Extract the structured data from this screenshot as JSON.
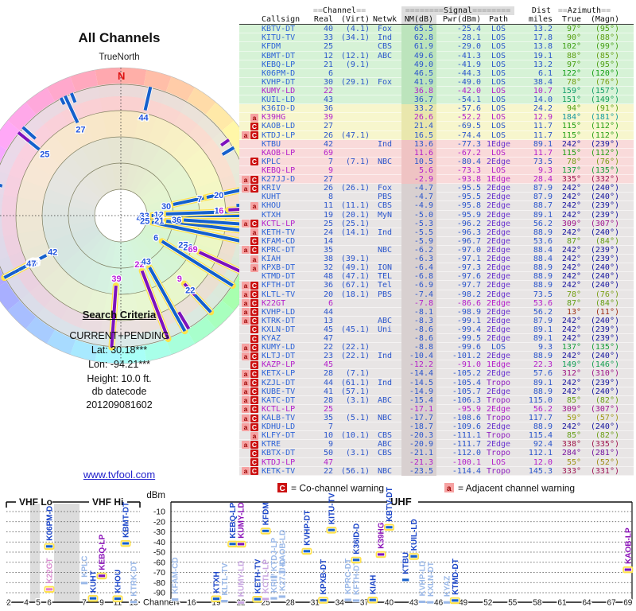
{
  "radar": {
    "title": "All Channels",
    "north_label": "TrueNorth",
    "north_letter": "N"
  },
  "criteria": {
    "heading": "Search Criteria",
    "lines": [
      "CURRENT+PENDING",
      "Lat: 30.18***",
      "Lon: -94.21***",
      "Height: 10.0 ft."
    ],
    "datecode_label": "db datecode",
    "datecode": "201209081602"
  },
  "link_text": "www.tvfool.com",
  "table": {
    "header1": {
      "channel": "==Channel==",
      "signal": "========Signal========",
      "dist": "Dist",
      "azimuth": "==Azimuth=="
    },
    "header2": [
      "Callsign",
      "Real",
      "(Virt)",
      "Netwk",
      "NM(dB)",
      "Pwr(dBm)",
      "Path",
      "miles",
      "True",
      "(Magn)"
    ],
    "rows": [
      [
        "KBTV-DT",
        40,
        "(4.1)",
        "Fox",
        65.5,
        -25.4,
        "LOS",
        13.2,
        97,
        95,
        "",
        "g",
        "",
        1
      ],
      [
        "KITU-TV",
        33,
        "(34.1)",
        "Ind",
        62.8,
        -28.1,
        "LOS",
        17.8,
        90,
        88,
        "",
        "g",
        "",
        1
      ],
      [
        "KFDM",
        25,
        "",
        "CBS",
        61.9,
        -29.0,
        "LOS",
        13.8,
        102,
        99,
        "",
        "g",
        "",
        1
      ],
      [
        "KBMT-DT",
        12,
        "(12.1)",
        "ABC",
        49.6,
        -41.3,
        "LOS",
        19.1,
        88,
        85,
        "",
        "g",
        "",
        1
      ],
      [
        "KEBQ-LP",
        21,
        "(9.1)",
        "",
        49.0,
        -41.9,
        "LOS",
        13.2,
        97,
        95,
        "",
        "g",
        "",
        1
      ],
      [
        "K06PM-D",
        6,
        "",
        "",
        46.5,
        -44.3,
        "LOS",
        6.1,
        122,
        120,
        "",
        "g",
        "",
        1
      ],
      [
        "KVHP-DT",
        30,
        "(29.1)",
        "Fox",
        41.9,
        -49.0,
        "LOS",
        38.4,
        78,
        76,
        "",
        "g",
        "",
        1
      ],
      [
        "KUMY-LD",
        22,
        "",
        "",
        36.8,
        -42.0,
        "LOS",
        10.7,
        159,
        157,
        "",
        "g",
        "all",
        1
      ],
      [
        "KUIL-LD",
        43,
        "",
        "",
        36.7,
        -54.1,
        "LOS",
        14.0,
        151,
        149,
        "",
        "g",
        "",
        1
      ],
      [
        "K36ID-D",
        36,
        "",
        "",
        33.2,
        -57.6,
        "LOS",
        24.2,
        94,
        91,
        "",
        "y",
        "",
        1
      ],
      [
        "K39HG",
        39,
        "",
        "",
        26.6,
        -52.2,
        "LOS",
        12.9,
        184,
        181,
        "a",
        "y",
        "all",
        1
      ],
      [
        "KAOB-LD",
        27,
        "",
        "",
        21.4,
        -69.5,
        "LOS",
        11.7,
        115,
        112,
        "C",
        "y",
        "",
        0
      ],
      [
        "KTDJ-LP",
        26,
        "(47.1)",
        "",
        16.5,
        -74.4,
        "LOS",
        11.7,
        115,
        112,
        "aC",
        "y",
        "",
        0
      ],
      [
        "KTBU",
        42,
        "",
        "Ind",
        13.6,
        -77.3,
        "1Edge",
        89.1,
        242,
        239,
        "",
        "p",
        "",
        0
      ],
      [
        "KAOB-LP",
        69,
        "",
        "",
        11.6,
        -67.2,
        "LOS",
        11.7,
        115,
        112,
        "",
        "p",
        "all",
        1
      ],
      [
        "KPLC",
        7,
        "(7.1)",
        "NBC",
        10.5,
        -80.4,
        "2Edge",
        73.5,
        78,
        76,
        "C",
        "p",
        "",
        1
      ],
      [
        "KEBQ-LP",
        9,
        "",
        "",
        5.6,
        -73.3,
        "LOS",
        9.3,
        137,
        135,
        "",
        "p",
        "all",
        1
      ],
      [
        "K27JJ-D",
        27,
        "",
        "",
        -2.9,
        -93.8,
        "1Edge",
        28.4,
        335,
        332,
        "aC",
        "p",
        "vals",
        0
      ],
      [
        "KRIV",
        26,
        "(26.1)",
        "Fox",
        -4.7,
        -95.5,
        "2Edge",
        87.9,
        242,
        240,
        "aC",
        "x",
        "",
        0
      ],
      [
        "KUHT",
        8,
        "",
        "PBS",
        -4.7,
        -95.5,
        "2Edge",
        87.9,
        242,
        240,
        "",
        "x",
        "",
        1
      ],
      [
        "KHOU",
        11,
        "(11.1)",
        "CBS",
        -4.9,
        -95.8,
        "2Edge",
        88.7,
        242,
        239,
        "a",
        "x",
        "",
        1
      ],
      [
        "KTXH",
        19,
        "(20.1)",
        "MyN",
        -5.0,
        -95.9,
        "2Edge",
        89.1,
        242,
        239,
        "",
        "x",
        "",
        1
      ],
      [
        "KCTL-LP",
        25,
        "(25.1)",
        "",
        -5.3,
        -96.2,
        "2Edge",
        56.2,
        309,
        307,
        "aC",
        "x",
        "call",
        0
      ],
      [
        "KETH-TV",
        24,
        "(14.1)",
        "Ind",
        -5.5,
        -96.3,
        "2Edge",
        88.9,
        242,
        240,
        "a",
        "x",
        "",
        1
      ],
      [
        "KFAM-CD",
        14,
        "",
        "",
        -5.9,
        -96.7,
        "2Edge",
        53.6,
        87,
        84,
        "C",
        "x",
        "",
        0
      ],
      [
        "KPRC-DT",
        35,
        "",
        "NBC",
        -6.2,
        -97.0,
        "2Edge",
        88.4,
        242,
        239,
        "aC",
        "x",
        "",
        0
      ],
      [
        "KIAH",
        38,
        "(39.1)",
        "",
        -6.3,
        -97.1,
        "2Edge",
        88.4,
        242,
        239,
        "a",
        "x",
        "",
        1
      ],
      [
        "KPXB-DT",
        32,
        "(49.1)",
        "ION",
        -6.4,
        -97.3,
        "2Edge",
        88.9,
        242,
        240,
        "a",
        "x",
        "",
        1
      ],
      [
        "KTMD-DT",
        48,
        "(47.1)",
        "TEL",
        -6.8,
        -97.6,
        "2Edge",
        88.9,
        242,
        240,
        "",
        "x",
        "",
        1
      ],
      [
        "KFTH-DT",
        36,
        "(67.1)",
        "Tel",
        -6.9,
        -97.7,
        "2Edge",
        88.9,
        242,
        240,
        "aC",
        "x",
        "",
        0
      ],
      [
        "KLTL-TV",
        20,
        "(18.1)",
        "PBS",
        -7.4,
        -98.2,
        "2Edge",
        73.5,
        78,
        76,
        "aC",
        "x",
        "",
        0
      ],
      [
        "K22GT",
        6,
        "",
        "",
        -7.8,
        -86.6,
        "2Edge",
        53.6,
        87,
        84,
        "aC",
        "x",
        "all",
        1
      ],
      [
        "KVHP-LD",
        44,
        "",
        "",
        -8.1,
        -98.9,
        "2Edge",
        56.2,
        13,
        11,
        "aC",
        "x",
        "",
        0
      ],
      [
        "KTRK-DT",
        13,
        "",
        "ABC",
        -8.3,
        -99.1,
        "2Edge",
        87.9,
        242,
        240,
        "aC",
        "x",
        "",
        0
      ],
      [
        "KXLN-DT",
        45,
        "(45.1)",
        "Uni",
        -8.6,
        -99.4,
        "2Edge",
        89.1,
        242,
        239,
        "C",
        "x",
        "",
        0
      ],
      [
        "KYAZ",
        47,
        "",
        "",
        -8.6,
        -99.5,
        "2Edge",
        89.1,
        242,
        239,
        "C",
        "x",
        "",
        0
      ],
      [
        "KUMY-LD",
        22,
        "(22.1)",
        "",
        -8.8,
        -99.6,
        "LOS",
        9.3,
        137,
        135,
        "aC",
        "x",
        "",
        0
      ],
      [
        "KLTJ-DT",
        23,
        "(22.1)",
        "Ind",
        -10.4,
        -101.2,
        "2Edge",
        88.9,
        242,
        240,
        "aC",
        "x",
        "",
        0
      ],
      [
        "KAZP-LP",
        45,
        "",
        "",
        -12.2,
        -91.0,
        "1Edge",
        22.3,
        149,
        146,
        "C",
        "x",
        "all",
        0
      ],
      [
        "KETX-LP",
        28,
        "(7.1)",
        "",
        -14.4,
        -105.2,
        "2Edge",
        57.6,
        312,
        310,
        "aC",
        "x",
        "",
        0
      ],
      [
        "KZJL-DT",
        44,
        "(61.1)",
        "Ind",
        -14.5,
        -105.4,
        "Tropo",
        89.1,
        242,
        239,
        "aC",
        "x",
        "",
        0
      ],
      [
        "KUBE-TV",
        41,
        "(57.1)",
        "",
        -14.9,
        -105.7,
        "2Edge",
        88.9,
        242,
        240,
        "aC",
        "x",
        "",
        0
      ],
      [
        "KATC-DT",
        28,
        "(3.1)",
        "ABC",
        -15.4,
        -106.3,
        "Tropo",
        115.0,
        85,
        82,
        "aC",
        "x",
        "",
        0
      ],
      [
        "KCTL-LP",
        25,
        "",
        "",
        -17.1,
        -95.9,
        "2Edge",
        56.2,
        309,
        307,
        "aC",
        "x",
        "all",
        0
      ],
      [
        "KALB-TV",
        35,
        "(5.1)",
        "NBC",
        -17.7,
        -108.6,
        "Tropo",
        117.7,
        59,
        57,
        "aC",
        "x",
        "",
        0
      ],
      [
        "KDHU-LD",
        7,
        "",
        "",
        -18.7,
        -109.6,
        "2Edge",
        88.9,
        242,
        240,
        "aC",
        "x",
        "",
        0
      ],
      [
        "KLFY-DT",
        10,
        "(10.1)",
        "CBS",
        -20.3,
        -111.1,
        "Tropo",
        115.4,
        85,
        82,
        "a",
        "x",
        "",
        0
      ],
      [
        "KTRE",
        9,
        "",
        "ABC",
        -20.9,
        -111.7,
        "2Edge",
        92.4,
        338,
        335,
        "aC",
        "x",
        "",
        0
      ],
      [
        "KBTX-DT",
        50,
        "(3.1)",
        "CBS",
        -21.1,
        -112.0,
        "Tropo",
        112.1,
        284,
        281,
        "C",
        "x",
        "",
        0
      ],
      [
        "KTDJ-LP",
        47,
        "",
        "",
        -21.3,
        -100.1,
        "LOS",
        12.0,
        55,
        52,
        "C",
        "x",
        "all",
        0
      ],
      [
        "KETK-TV",
        22,
        "(56.1)",
        "NBC",
        -23.5,
        -114.4,
        "Tropo",
        145.3,
        333,
        331,
        "aC",
        "x",
        "",
        0
      ]
    ]
  },
  "legend": {
    "co_badge": "C",
    "co_text": "= Co-channel warning",
    "adj_badge": "a",
    "adj_text": "= Adjacent channel warning"
  },
  "chart": {
    "vhf_lo_label": "VHF Lo",
    "vhf_hi_label": "VHF Hi",
    "uhf_label": "UHF",
    "dbm_label": "dBm",
    "channel_label": "Channel",
    "dbm_ticks": [
      -10,
      -20,
      -30,
      -40,
      -50,
      -60,
      -70,
      -80,
      -90
    ],
    "vhf_ticks": [
      2,
      4,
      5,
      6,
      7,
      9,
      11,
      13
    ],
    "uhf_ticks": [
      14,
      16,
      19,
      22,
      25,
      28,
      31,
      34,
      37,
      40,
      43,
      46,
      49,
      52,
      55,
      58,
      61,
      64,
      67,
      69
    ],
    "bars": [
      {
        "call": "K06PM-D",
        "ch": 6,
        "dbm": -44.3,
        "cls": "b",
        "halo": 1
      },
      {
        "call": "K22GT",
        "ch": 6,
        "dbm": -86.6,
        "cls": "pk",
        "halo": 1
      },
      {
        "call": "KPLC",
        "ch": 7,
        "dbm": -80.4,
        "cls": "lb",
        "halo": 0
      },
      {
        "call": "KUHT",
        "ch": 8,
        "dbm": -95.5,
        "cls": "b",
        "halo": 1
      },
      {
        "call": "KEBQ-LP",
        "ch": 9,
        "dbm": -73.3,
        "cls": "p",
        "halo": 1
      },
      {
        "call": "KHOU",
        "ch": 11,
        "dbm": -95.8,
        "cls": "b",
        "halo": 1
      },
      {
        "call": "KBMT-DT",
        "ch": 12,
        "dbm": -41.3,
        "cls": "b",
        "halo": 1
      },
      {
        "call": "KTRK-DT",
        "ch": 13,
        "dbm": -99.1,
        "cls": "lb",
        "halo": 0
      },
      {
        "call": "KFAM-CD",
        "ch": 14,
        "dbm": -96.7,
        "cls": "lb",
        "halo": 0
      },
      {
        "call": "KTXH",
        "ch": 19,
        "dbm": -95.9,
        "cls": "b",
        "halo": 1
      },
      {
        "call": "KLTL-TV",
        "ch": 20,
        "dbm": -98.2,
        "cls": "lb",
        "halo": 0
      },
      {
        "call": "KEBQ-LP",
        "ch": 21,
        "dbm": -41.9,
        "cls": "b",
        "halo": 1
      },
      {
        "call": "KUMY-LD",
        "ch": 22,
        "dbm": -42.0,
        "cls": "p",
        "halo": 1
      },
      {
        "call": "KUMY-LD",
        "ch": 22,
        "dbm": -99.6,
        "cls": "lp",
        "halo": 0
      },
      {
        "call": "KETH-TV",
        "ch": 24,
        "dbm": -96.3,
        "cls": "b",
        "halo": 1
      },
      {
        "call": "KFDM",
        "ch": 25,
        "dbm": -29.0,
        "cls": "b",
        "halo": 1
      },
      {
        "call": "KCTL-LP",
        "ch": 25,
        "dbm": -96.2,
        "cls": "lp",
        "halo": 0
      },
      {
        "call": "KRIV",
        "ch": 26,
        "dbm": -95.5,
        "cls": "lb",
        "halo": 0
      },
      {
        "call": "KTDJ-LP",
        "ch": 26,
        "dbm": -74.4,
        "cls": "lb",
        "halo": 0
      },
      {
        "call": "K27JJ-D",
        "ch": 27,
        "dbm": -93.8,
        "cls": "lb",
        "halo": 0
      },
      {
        "call": "KAOB-LD",
        "ch": 27,
        "dbm": -69.5,
        "cls": "lb",
        "halo": 0
      },
      {
        "call": "KVHP-DT",
        "ch": 30,
        "dbm": -49.0,
        "cls": "b",
        "halo": 1
      },
      {
        "call": "KPXB-DT",
        "ch": 32,
        "dbm": -97.3,
        "cls": "b",
        "halo": 1
      },
      {
        "call": "KITU-TV",
        "ch": 33,
        "dbm": -28.1,
        "cls": "b",
        "halo": 1
      },
      {
        "call": "KPRC-DT",
        "ch": 35,
        "dbm": -97.0,
        "cls": "lb",
        "halo": 0
      },
      {
        "call": "KFTH-DT",
        "ch": 36,
        "dbm": -97.7,
        "cls": "lb",
        "halo": 0
      },
      {
        "call": "K36ID-D",
        "ch": 36,
        "dbm": -57.6,
        "cls": "b",
        "halo": 1
      },
      {
        "call": "KIAH",
        "ch": 38,
        "dbm": -97.1,
        "cls": "b",
        "halo": 1
      },
      {
        "call": "K39HG",
        "ch": 39,
        "dbm": -52.2,
        "cls": "p",
        "halo": 1
      },
      {
        "call": "KBTV-DT",
        "ch": 40,
        "dbm": -25.4,
        "cls": "b",
        "halo": 1
      },
      {
        "call": "KTBU",
        "ch": 42,
        "dbm": -77.3,
        "cls": "b",
        "halo": 0
      },
      {
        "call": "KUIL-LD",
        "ch": 43,
        "dbm": -54.1,
        "cls": "b",
        "halo": 1
      },
      {
        "call": "KVHP-LD",
        "ch": 44,
        "dbm": -98.9,
        "cls": "lb",
        "halo": 0
      },
      {
        "call": "KXLN-DT",
        "ch": 45,
        "dbm": -99.4,
        "cls": "lb",
        "halo": 0
      },
      {
        "call": "KYAZ",
        "ch": 47,
        "dbm": -99.5,
        "cls": "lb",
        "halo": 0
      },
      {
        "call": "KTMD-DT",
        "ch": 48,
        "dbm": -97.6,
        "cls": "b",
        "halo": 1
      },
      {
        "call": "KAOB-LP",
        "ch": 69,
        "dbm": -67.2,
        "cls": "p",
        "halo": 1
      }
    ]
  },
  "colors": {
    "blue": "#2a55cc",
    "magenta": "#b41ecb",
    "callsign_blue": "#2e64d8",
    "path_los": "#2a55cc",
    "path_edge": "#6a35cf",
    "path_tropo": "#9122c2",
    "bar_blue": "#1560cc",
    "bar_purple": "#7d12bc",
    "halo_yellow": "#ffe24a",
    "light_blue": "#9ab8e8",
    "light_purple": "#c9a6e2",
    "pink_bar": "#e87cc8",
    "row_green": "#d6f2d6",
    "row_yellow": "#f7f6cd",
    "row_pink": "#f9dada",
    "row_gray": "#e8e5e5",
    "band_green": "#bce4bc",
    "band_yellow": "#e9e7ad",
    "band_pink": "#efc3c3",
    "band_gray": "#d8d0d0",
    "badge_co_bg": "#cc1111",
    "badge_co_fg": "#ffffff",
    "badge_adj_bg": "#f6a2a2",
    "badge_adj_fg": "#990000",
    "n_letter": "#dd1111",
    "link": "#2222cc"
  }
}
